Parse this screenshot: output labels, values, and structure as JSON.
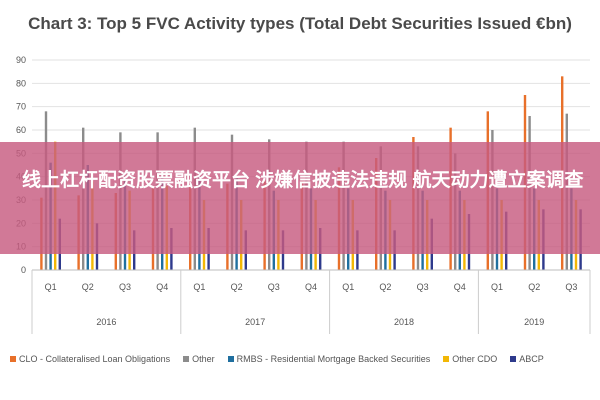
{
  "chart_data": {
    "type": "bar",
    "title": "Chart 3: Top 5 FVC Activity types (Total Debt Securities Issued €bn)",
    "ylim": [
      0,
      90
    ],
    "yticks": [
      0,
      10,
      20,
      30,
      40,
      50,
      60,
      70,
      80,
      90
    ],
    "grid": true,
    "legend_position": "bottom",
    "categories": [
      "Q1",
      "Q2",
      "Q3",
      "Q4",
      "Q1",
      "Q2",
      "Q3",
      "Q4",
      "Q1",
      "Q2",
      "Q3",
      "Q4",
      "Q1",
      "Q2",
      "Q3"
    ],
    "groups": [
      {
        "label": "2016",
        "count": 4
      },
      {
        "label": "2017",
        "count": 4
      },
      {
        "label": "2018",
        "count": 4
      },
      {
        "label": "2019",
        "count": 3
      }
    ],
    "series": [
      {
        "name": "CLO - Collateralised Loan Obligations",
        "color": "#e8702a",
        "values": [
          31,
          32,
          33,
          35,
          36,
          37,
          38,
          38,
          44,
          48,
          57,
          61,
          68,
          75,
          83
        ]
      },
      {
        "name": "Other",
        "color": "#8c8c8c",
        "values": [
          68,
          61,
          59,
          59,
          61,
          58,
          56,
          55,
          55,
          53,
          53,
          50,
          60,
          66,
          67
        ]
      },
      {
        "name": "RMBS - Residential Mortgage Backed Securities",
        "color": "#1f6f9f",
        "values": [
          46,
          45,
          40,
          40,
          40,
          40,
          34,
          35,
          35,
          34,
          34,
          34,
          35,
          35,
          35
        ]
      },
      {
        "name": "Other CDO",
        "color": "#f2b705",
        "values": [
          55,
          38,
          34,
          36,
          30,
          30,
          30,
          30,
          30,
          30,
          30,
          30,
          30,
          30,
          30
        ]
      },
      {
        "name": "ABCP",
        "color": "#2e3a8c",
        "values": [
          22,
          20,
          17,
          18,
          18,
          17,
          17,
          18,
          17,
          17,
          22,
          24,
          25,
          26,
          26
        ]
      }
    ]
  },
  "banner": {
    "text": "线上杠杆配资股票融资平台 涉嫌信披违法违规 航天动力遭立案调查"
  }
}
